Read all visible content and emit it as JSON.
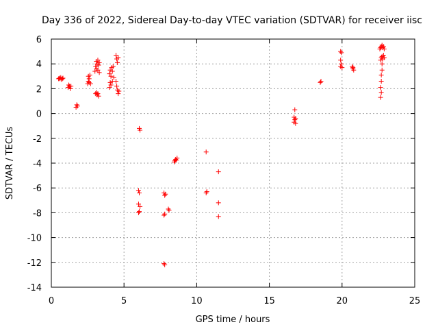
{
  "chart_data": {
    "type": "scatter",
    "title": "Day 336 of 2022, Sidereal Day-to-day VTEC variation (SDTVAR) for receiver iisc",
    "xlabel": "GPS time / hours",
    "ylabel": "SDTVAR / TECUs",
    "xlim": [
      0,
      25
    ],
    "ylim": [
      -14,
      6
    ],
    "xticks": [
      0,
      5,
      10,
      15,
      20,
      25
    ],
    "yticks": [
      -14,
      -12,
      -10,
      -8,
      -6,
      -4,
      -2,
      0,
      2,
      4,
      6
    ],
    "grid": true,
    "marker": "+",
    "color": "#ff0000",
    "series": [
      {
        "name": "SDTVAR",
        "points": [
          [
            0.5,
            2.8
          ],
          [
            0.55,
            2.85
          ],
          [
            0.6,
            2.8
          ],
          [
            0.65,
            2.9
          ],
          [
            0.7,
            2.75
          ],
          [
            0.75,
            2.8
          ],
          [
            0.8,
            2.85
          ],
          [
            1.15,
            2.1
          ],
          [
            1.2,
            2.3
          ],
          [
            1.25,
            2.2
          ],
          [
            1.3,
            2.0
          ],
          [
            1.35,
            2.2
          ],
          [
            1.7,
            0.5
          ],
          [
            1.75,
            0.7
          ],
          [
            1.8,
            0.6
          ],
          [
            2.5,
            2.4
          ],
          [
            2.55,
            2.6
          ],
          [
            2.55,
            3.0
          ],
          [
            2.6,
            2.8
          ],
          [
            2.65,
            3.1
          ],
          [
            2.6,
            2.5
          ],
          [
            2.7,
            2.4
          ],
          [
            3.0,
            3.4
          ],
          [
            3.05,
            3.8
          ],
          [
            3.1,
            4.2
          ],
          [
            3.1,
            3.6
          ],
          [
            3.15,
            4.0
          ],
          [
            3.2,
            3.5
          ],
          [
            3.2,
            4.3
          ],
          [
            3.25,
            3.9
          ],
          [
            3.3,
            3.3
          ],
          [
            3.3,
            4.1
          ],
          [
            3.05,
            1.6
          ],
          [
            3.1,
            1.7
          ],
          [
            3.15,
            1.5
          ],
          [
            3.2,
            1.6
          ],
          [
            3.25,
            1.4
          ],
          [
            4.0,
            2.1
          ],
          [
            4.0,
            3.2
          ],
          [
            4.05,
            2.5
          ],
          [
            4.05,
            3.5
          ],
          [
            4.1,
            2.3
          ],
          [
            4.1,
            3.0
          ],
          [
            4.15,
            3.7
          ],
          [
            4.2,
            2.6
          ],
          [
            4.2,
            3.4
          ],
          [
            4.25,
            3.8
          ],
          [
            4.3,
            2.9
          ],
          [
            4.45,
            4.7
          ],
          [
            4.45,
            2.6
          ],
          [
            4.5,
            4.4
          ],
          [
            4.5,
            2.2
          ],
          [
            4.55,
            4.1
          ],
          [
            4.55,
            1.9
          ],
          [
            4.6,
            1.6
          ],
          [
            4.6,
            4.5
          ],
          [
            4.65,
            1.8
          ],
          [
            6.05,
            -1.2
          ],
          [
            6.1,
            -1.35
          ],
          [
            6.0,
            -6.2
          ],
          [
            6.05,
            -6.4
          ],
          [
            6.0,
            -7.3
          ],
          [
            6.1,
            -7.5
          ],
          [
            6.05,
            -7.9
          ],
          [
            6.0,
            -8.0
          ],
          [
            7.75,
            -6.4
          ],
          [
            7.8,
            -6.6
          ],
          [
            7.85,
            -6.5
          ],
          [
            7.75,
            -8.2
          ],
          [
            7.8,
            -8.1
          ],
          [
            7.75,
            -12.1
          ],
          [
            7.8,
            -12.2
          ],
          [
            8.05,
            -7.7
          ],
          [
            8.1,
            -7.8
          ],
          [
            8.45,
            -3.9
          ],
          [
            8.5,
            -3.8
          ],
          [
            8.55,
            -3.7
          ],
          [
            8.6,
            -3.75
          ],
          [
            8.65,
            -3.6
          ],
          [
            10.65,
            -3.1
          ],
          [
            10.7,
            -6.3
          ],
          [
            10.65,
            -6.4
          ],
          [
            11.5,
            -4.7
          ],
          [
            11.5,
            -7.2
          ],
          [
            11.5,
            -8.3
          ],
          [
            16.75,
            0.3
          ],
          [
            16.7,
            -0.3
          ],
          [
            16.8,
            -0.4
          ],
          [
            16.75,
            -0.5
          ],
          [
            16.7,
            -0.7
          ],
          [
            16.8,
            -0.8
          ],
          [
            18.5,
            2.5
          ],
          [
            18.55,
            2.6
          ],
          [
            19.9,
            5.0
          ],
          [
            19.95,
            4.9
          ],
          [
            19.9,
            4.3
          ],
          [
            19.95,
            4.0
          ],
          [
            19.9,
            3.8
          ],
          [
            20.0,
            3.7
          ],
          [
            20.7,
            3.8
          ],
          [
            20.75,
            3.6
          ],
          [
            20.8,
            3.5
          ],
          [
            20.75,
            3.7
          ],
          [
            22.6,
            5.2
          ],
          [
            22.65,
            5.3
          ],
          [
            22.7,
            5.4
          ],
          [
            22.75,
            5.5
          ],
          [
            22.8,
            5.3
          ],
          [
            22.85,
            5.4
          ],
          [
            22.9,
            5.2
          ],
          [
            22.65,
            4.3
          ],
          [
            22.7,
            4.5
          ],
          [
            22.75,
            4.6
          ],
          [
            22.8,
            4.4
          ],
          [
            22.85,
            4.7
          ],
          [
            22.9,
            4.5
          ],
          [
            22.75,
            4.0
          ],
          [
            22.75,
            3.5
          ],
          [
            22.7,
            3.1
          ],
          [
            22.7,
            2.6
          ],
          [
            22.65,
            2.1
          ],
          [
            22.7,
            1.7
          ],
          [
            22.65,
            1.3
          ]
        ]
      }
    ]
  }
}
